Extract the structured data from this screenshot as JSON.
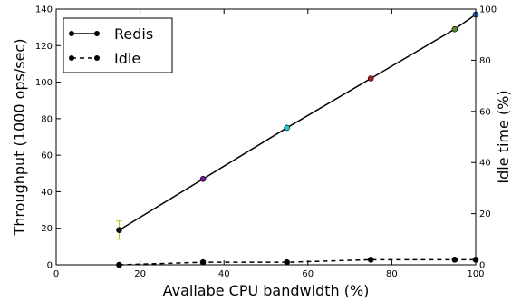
{
  "chart_data": {
    "type": "line",
    "title": "",
    "xlabel": "Availabe CPU bandwidth (%)",
    "ylabel_left": "Throughput (1000 ops/sec)",
    "ylabel_right": "Idle time (%)",
    "xlim": [
      0,
      100
    ],
    "ylim_left": [
      0,
      140
    ],
    "ylim_right": [
      0,
      100
    ],
    "x_ticks": [
      "0",
      "20",
      "40",
      "60",
      "80",
      "100"
    ],
    "y_left_ticks": [
      "0",
      "20",
      "40",
      "60",
      "80",
      "100",
      "120",
      "140"
    ],
    "y_right_ticks": [
      "0",
      "20",
      "40",
      "60",
      "80",
      "100"
    ],
    "grid": false,
    "legend_position": "top-left",
    "series": [
      {
        "name": "Redis",
        "axis": "left",
        "style": "solid",
        "color": "#000000",
        "x": [
          15,
          35,
          55,
          75,
          95,
          100
        ],
        "y": [
          19,
          47,
          75,
          102,
          129,
          137
        ],
        "marker_colors": [
          "#111111",
          "#6a1b9a",
          "#26c6da",
          "#b71c1c",
          "#558b2f",
          "#1565c0"
        ],
        "error_low": [
          14,
          null,
          null,
          null,
          null,
          null
        ],
        "error_high": [
          24,
          null,
          null,
          null,
          null,
          null
        ],
        "error_color": "#c0c000"
      },
      {
        "name": "Idle",
        "axis": "right",
        "style": "dashed",
        "color": "#000000",
        "x": [
          15,
          35,
          55,
          75,
          95,
          100
        ],
        "y": [
          0,
          1,
          1,
          2,
          2,
          2
        ]
      }
    ]
  }
}
